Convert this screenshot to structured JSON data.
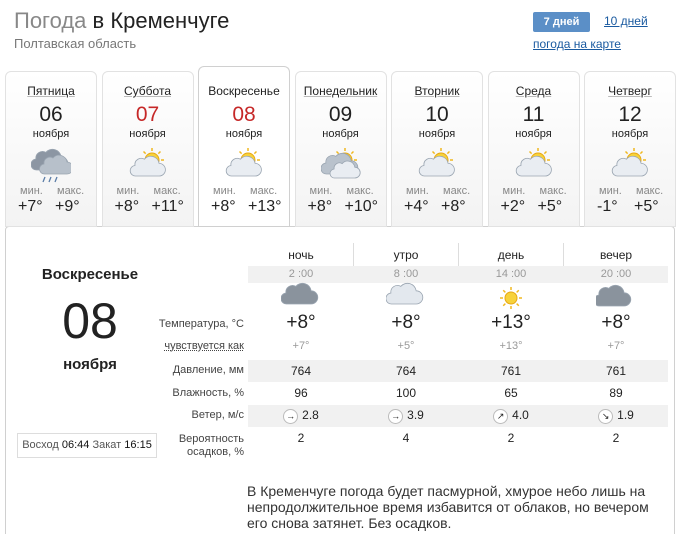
{
  "header": {
    "title_lead": "Погода",
    "title_place": "в Кременчуге",
    "region": "Полтавская область",
    "tab_active": "7 дней",
    "tab_other": "10 дней",
    "map_link": "погода на карте"
  },
  "days": [
    {
      "weekday": "Пятница",
      "date": "06",
      "month": "ноября",
      "min_label": "мин.",
      "max_label": "макс.",
      "min": "+7°",
      "max": "+9°"
    },
    {
      "weekday": "Суббота",
      "date": "07",
      "month": "ноября",
      "min_label": "мин.",
      "max_label": "макс.",
      "min": "+8°",
      "max": "+11°"
    },
    {
      "weekday": "Воскресенье",
      "date": "08",
      "month": "ноября",
      "min_label": "мин.",
      "max_label": "макс.",
      "min": "+8°",
      "max": "+13°"
    },
    {
      "weekday": "Понедельник",
      "date": "09",
      "month": "ноября",
      "min_label": "мин.",
      "max_label": "макс.",
      "min": "+8°",
      "max": "+10°"
    },
    {
      "weekday": "Вторник",
      "date": "10",
      "month": "ноября",
      "min_label": "мин.",
      "max_label": "макс.",
      "min": "+4°",
      "max": "+8°"
    },
    {
      "weekday": "Среда",
      "date": "11",
      "month": "ноября",
      "min_label": "мин.",
      "max_label": "макс.",
      "min": "+2°",
      "max": "+5°"
    },
    {
      "weekday": "Четверг",
      "date": "12",
      "month": "ноября",
      "min_label": "мин.",
      "max_label": "макс.",
      "min": "-1°",
      "max": "+5°"
    }
  ],
  "detail": {
    "weekday": "Воскресенье",
    "date": "08",
    "month": "ноября",
    "sunrise_label": "Восход",
    "sunrise": "06:44",
    "sunset_label": "Закат",
    "sunset": "16:15",
    "periods": [
      "ночь",
      "утро",
      "день",
      "вечер"
    ],
    "times": [
      "2 :00",
      "8 :00",
      "14 :00",
      "20 :00"
    ],
    "row_labels": {
      "temperature": "Температура, °С",
      "feels": "чувствуется как",
      "pressure": "Давление, мм",
      "humidity": "Влажность, %",
      "wind": "Ветер, м/с",
      "precipitation": "Вероятность осадков, %"
    },
    "temperature": [
      "+8°",
      "+8°",
      "+13°",
      "+8°"
    ],
    "feels": [
      "+7°",
      "+5°",
      "+13°",
      "+7°"
    ],
    "pressure": [
      "764",
      "764",
      "761",
      "761"
    ],
    "humidity": [
      "96",
      "100",
      "65",
      "89"
    ],
    "wind": [
      {
        "dir": "→",
        "speed": "2.8"
      },
      {
        "dir": "→",
        "speed": "3.9"
      },
      {
        "dir": "↗",
        "speed": "4.0"
      },
      {
        "dir": "↘",
        "speed": "1.9"
      }
    ],
    "precipitation": [
      "2",
      "4",
      "2",
      "2"
    ]
  },
  "description": "В Кременчуге погода будет пасмурной, хмурое небо лишь на непродолжительное время избавится от облаков, но вечером его снова затянет. Без осадков."
}
